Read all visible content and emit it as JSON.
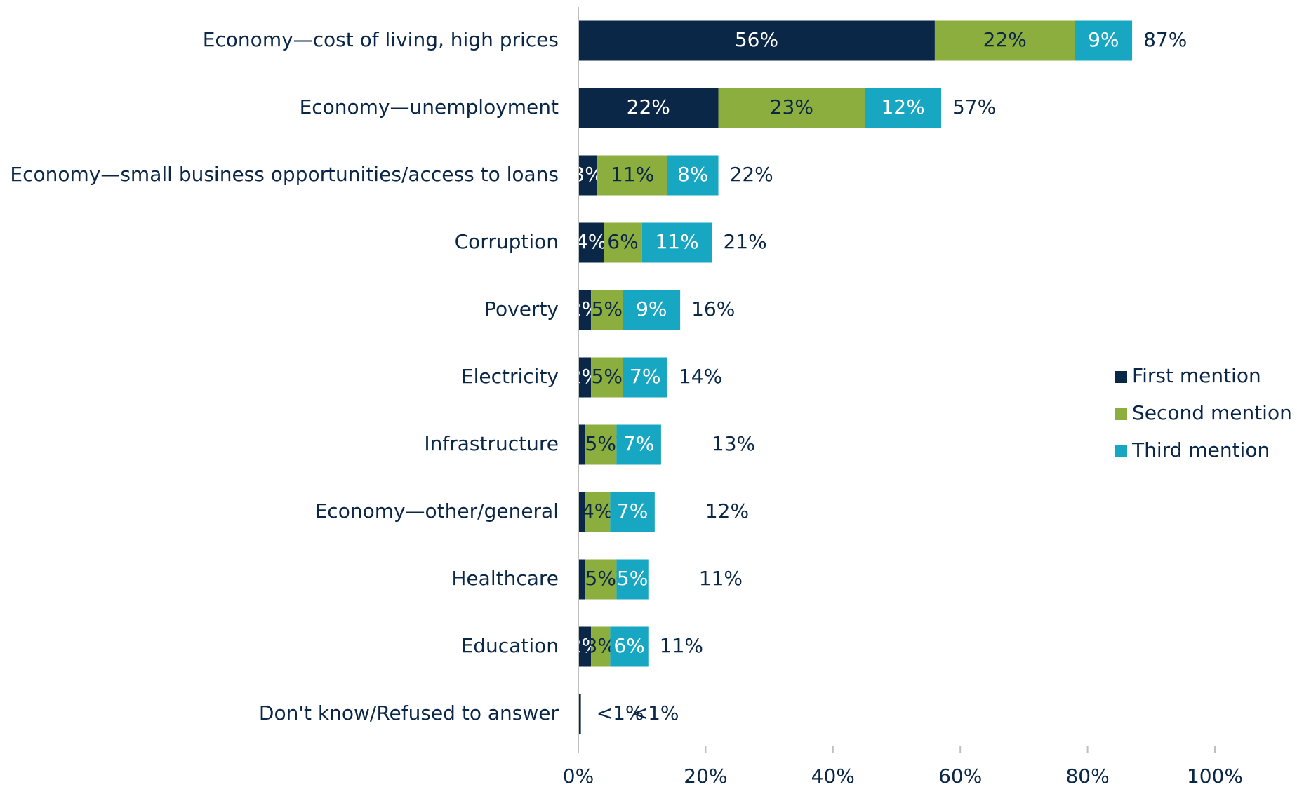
{
  "chart_data": {
    "type": "stacked-barh",
    "categories": [
      "Economy—cost of living, high prices",
      "Economy—unemployment",
      "Economy—small business opportunities/access to loans",
      "Corruption",
      "Poverty",
      "Electricity",
      "Infrastructure",
      "Economy—other/general",
      "Healthcare",
      "Education",
      "Don't know/Refused to answer"
    ],
    "series": [
      {
        "name": "First mention",
        "color": "#0a2748",
        "label_color": "#ffffff",
        "values": [
          56,
          22,
          3,
          4,
          2,
          2,
          1,
          1,
          1,
          2,
          0.4
        ],
        "value_labels": [
          "56%",
          "22%",
          "3%",
          "4%",
          "2%",
          "2%",
          "1%",
          "1%",
          "1%",
          "2%",
          "<1%"
        ]
      },
      {
        "name": "Second mention",
        "color": "#8cae3e",
        "label_color": "#0a2748",
        "values": [
          22,
          23,
          11,
          6,
          5,
          5,
          5,
          4,
          5,
          3,
          0
        ],
        "value_labels": [
          "22%",
          "23%",
          "11%",
          "6%",
          "5%",
          "5%",
          "5%",
          "4%",
          "5%",
          "3%",
          null
        ]
      },
      {
        "name": "Third mention",
        "color": "#17a7c3",
        "label_color": "#ffffff",
        "values": [
          9,
          12,
          8,
          11,
          9,
          7,
          7,
          7,
          5,
          6,
          0
        ],
        "value_labels": [
          "9%",
          "12%",
          "8%",
          "11%",
          "9%",
          "7%",
          "7%",
          "7%",
          "5%",
          "6%",
          null
        ]
      }
    ],
    "totals": [
      87,
      57,
      22,
      21,
      16,
      14,
      13,
      12,
      11,
      11,
      0.4
    ],
    "total_labels": [
      "87%",
      "57%",
      "22%",
      "21%",
      "16%",
      "14%",
      "13%",
      "12%",
      "11%",
      "11%",
      "<1%"
    ],
    "xlim": [
      0,
      100
    ],
    "xticks": [
      {
        "value": 0,
        "label": "0%"
      },
      {
        "value": 20,
        "label": "20%"
      },
      {
        "value": 40,
        "label": "40%"
      },
      {
        "value": 60,
        "label": "60%"
      },
      {
        "value": 80,
        "label": "80%"
      },
      {
        "value": 100,
        "label": "100%"
      }
    ],
    "legend": "right"
  }
}
